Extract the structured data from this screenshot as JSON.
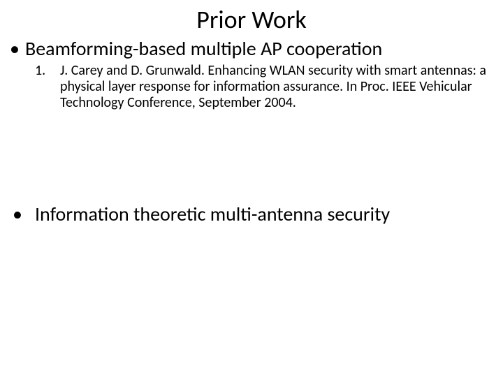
{
  "title": "Prior Work",
  "bullets": {
    "first": "Beamforming-based multiple AP cooperation",
    "ref_num": "1.",
    "ref_text": "J. Carey and D. Grunwald. Enhancing WLAN security with smart antennas: a physical layer response for information assurance. In Proc. IEEE Vehicular Technology Conference, September 2004.",
    "second": "Information theoretic multi-antenna security"
  },
  "colors": {
    "background": "#ffffff",
    "text": "#000000"
  },
  "fonts": {
    "title_size": 36,
    "bullet_size": 28,
    "ref_size": 20,
    "family": "Calibri"
  }
}
